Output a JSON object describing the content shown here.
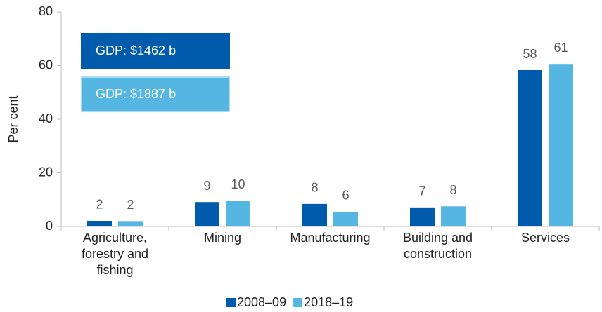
{
  "chart_data": {
    "type": "bar",
    "categories": [
      "Agriculture, forestry and fishing",
      "Mining",
      "Manufacturing",
      "Building and construction",
      "Services"
    ],
    "series": [
      {
        "name": "2008–09",
        "color": "#005bac",
        "values": [
          2.1,
          9.1,
          8.4,
          7.1,
          58.3
        ],
        "value_labels": [
          "2",
          "9",
          "8",
          "7",
          "58"
        ]
      },
      {
        "name": "2018–19",
        "color": "#55b6e2",
        "values": [
          2.0,
          9.6,
          5.5,
          7.5,
          60.6
        ],
        "value_labels": [
          "2",
          "10",
          "6",
          "8",
          "61"
        ]
      }
    ],
    "ylabel": "Per cent",
    "ylim": [
      0,
      80
    ],
    "yticks": [
      0,
      20,
      40,
      60,
      80
    ],
    "annotations": [
      {
        "text": "GDP: $1462 b",
        "color": "#005bac"
      },
      {
        "text": "GDP: $1887 b",
        "color": "#55b6e2"
      }
    ],
    "legend": "bottom"
  }
}
